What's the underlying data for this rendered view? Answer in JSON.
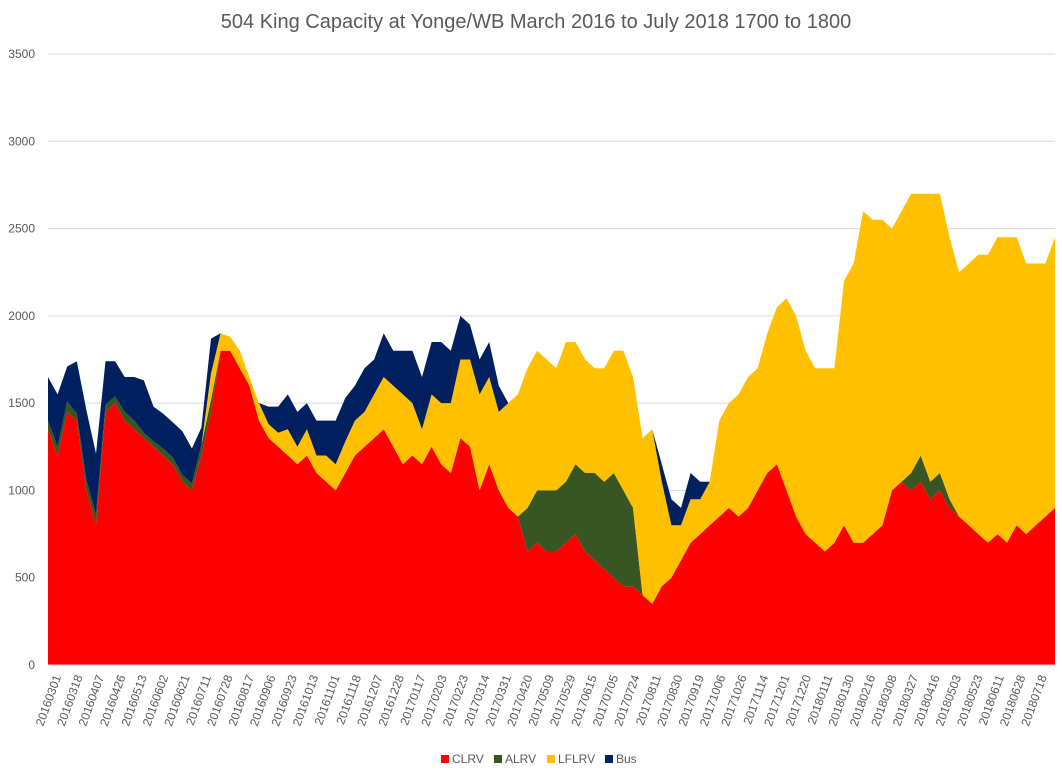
{
  "chart_data": {
    "type": "area",
    "stacked": true,
    "title": "504 King Capacity at Yonge/WB March 2016 to July 2018  1700 to 1800",
    "xlabel": "",
    "ylabel": "",
    "ylim": [
      0,
      3500
    ],
    "yticks": [
      0,
      500,
      1000,
      1500,
      2000,
      2500,
      3000,
      3500
    ],
    "grid": true,
    "legend_position": "bottom",
    "x_tick_labels": [
      "20160301",
      "20160318",
      "20160407",
      "20160426",
      "20160513",
      "20160602",
      "20160621",
      "20160711",
      "20160728",
      "20160817",
      "20160906",
      "20160923",
      "20161013",
      "20161101",
      "20161118",
      "20161207",
      "20161228",
      "20170117",
      "20170203",
      "20170223",
      "20170314",
      "20170331",
      "20170420",
      "20170509",
      "20170529",
      "20170615",
      "20170705",
      "20170724",
      "20170811",
      "20170830",
      "20170919",
      "20171006",
      "20171026",
      "20171114",
      "20171201",
      "20171220",
      "20180111",
      "20180130",
      "20180216",
      "20180308",
      "20180327",
      "20180416",
      "20180503",
      "20180523",
      "20180611",
      "20180628",
      "20180718"
    ],
    "series": [
      {
        "name": "CLRV",
        "color": "#ff0000",
        "values": [
          1350,
          1200,
          1450,
          1400,
          1000,
          800,
          1450,
          1500,
          1400,
          1350,
          1300,
          1250,
          1200,
          1150,
          1050,
          1000,
          1200,
          1450,
          1800,
          1800,
          1700,
          1600,
          1400,
          1300,
          1250,
          1200,
          1150,
          1200,
          1100,
          1050,
          1000,
          1100,
          1200,
          1250,
          1300,
          1350,
          1250,
          1150,
          1200,
          1150,
          1250,
          1150,
          1100,
          1300,
          1250,
          1000,
          1150,
          1000,
          900,
          850,
          650,
          700,
          650,
          650,
          700,
          750,
          650,
          600,
          550,
          500,
          450,
          450,
          400,
          350,
          450,
          500,
          600,
          700,
          750,
          800,
          850,
          900,
          850,
          900,
          1000,
          1100,
          1150,
          1000,
          850,
          750,
          700,
          650,
          700,
          800,
          700,
          700,
          750,
          800,
          1000,
          1050,
          1000,
          1050,
          950,
          1000,
          900,
          850,
          800,
          750,
          700,
          750,
          700,
          800,
          750,
          800,
          850,
          900
        ]
      },
      {
        "name": "ALRV",
        "color": "#375623",
        "values": [
          50,
          50,
          60,
          40,
          60,
          60,
          40,
          40,
          50,
          50,
          30,
          30,
          40,
          40,
          40,
          40,
          60,
          70,
          0,
          0,
          0,
          0,
          0,
          0,
          0,
          0,
          0,
          0,
          0,
          0,
          0,
          0,
          0,
          0,
          0,
          0,
          0,
          0,
          0,
          0,
          0,
          0,
          0,
          0,
          0,
          0,
          0,
          0,
          0,
          0,
          250,
          300,
          350,
          350,
          350,
          400,
          450,
          500,
          500,
          600,
          550,
          450,
          0,
          0,
          0,
          0,
          0,
          0,
          0,
          0,
          0,
          0,
          0,
          0,
          0,
          0,
          0,
          0,
          0,
          0,
          0,
          0,
          0,
          0,
          0,
          0,
          0,
          0,
          0,
          0,
          100,
          150,
          100,
          100,
          50,
          0,
          0,
          0,
          0,
          0,
          0,
          0,
          0,
          0,
          0,
          0
        ]
      },
      {
        "name": "LFLRV",
        "color": "#ffc000",
        "values": [
          0,
          0,
          0,
          0,
          0,
          0,
          0,
          0,
          0,
          0,
          0,
          0,
          0,
          0,
          0,
          0,
          0,
          150,
          100,
          80,
          100,
          50,
          100,
          80,
          80,
          150,
          100,
          150,
          100,
          150,
          150,
          180,
          200,
          200,
          250,
          300,
          350,
          400,
          300,
          200,
          300,
          350,
          400,
          450,
          500,
          550,
          500,
          450,
          600,
          700,
          800,
          800,
          750,
          700,
          800,
          700,
          650,
          600,
          650,
          700,
          800,
          750,
          900,
          1000,
          600,
          300,
          200,
          250,
          200,
          250,
          550,
          600,
          700,
          750,
          700,
          800,
          900,
          1100,
          1150,
          1050,
          1000,
          1050,
          1000,
          1400,
          1600,
          1900,
          1800,
          1750,
          1500,
          1550,
          1600,
          1500,
          1650,
          1600,
          1500,
          1400,
          1500,
          1600,
          1650,
          1700,
          1750,
          1650,
          1550,
          1500,
          1450,
          1550
        ]
      },
      {
        "name": "Bus",
        "color": "#002060",
        "values": [
          250,
          300,
          200,
          300,
          400,
          350,
          250,
          200,
          200,
          250,
          300,
          200,
          200,
          200,
          250,
          200,
          100,
          200,
          0,
          0,
          0,
          0,
          0,
          100,
          150,
          200,
          200,
          150,
          200,
          200,
          250,
          250,
          200,
          250,
          200,
          250,
          200,
          250,
          300,
          300,
          300,
          350,
          300,
          250,
          200,
          200,
          200,
          150,
          0,
          0,
          0,
          0,
          0,
          0,
          0,
          0,
          0,
          0,
          0,
          0,
          0,
          0,
          0,
          0,
          100,
          150,
          100,
          150,
          100,
          0,
          0,
          0,
          0,
          0,
          0,
          0,
          0,
          0,
          0,
          0,
          0,
          0,
          0,
          0,
          0,
          0,
          0,
          0,
          0,
          0,
          0,
          0,
          0,
          0,
          0,
          0,
          0,
          0,
          0,
          0,
          0,
          0,
          0,
          0,
          0,
          0
        ]
      }
    ]
  }
}
